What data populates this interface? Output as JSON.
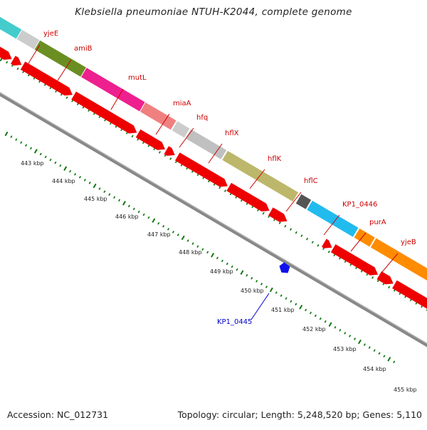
{
  "title": "Klebsiella pneumoniae NTUH-K2044, complete genome",
  "accession": "Accession: NC_012731",
  "topology": "Topology: circular; Length: 5,248,520 bp; Genes: 5,110",
  "colors": {
    "gene_label": "#cc0000",
    "highlight_label": "#0000cc",
    "cds_arrow": "#ee0000",
    "tick": "#117711",
    "backbone": "#888888"
  },
  "kbp_labels": [
    "443 kbp",
    "444 kbp",
    "445 kbp",
    "446 kbp",
    "447 kbp",
    "448 kbp",
    "449 kbp",
    "450 kbp",
    "451 kbp",
    "452 kbp",
    "453 kbp",
    "454 kbp",
    "455 kbp"
  ],
  "genes": [
    {
      "name": "yjeE",
      "color": "#44cccc"
    },
    {
      "name": "amiB",
      "color": "#6b8e23"
    },
    {
      "name": "mutL",
      "color": "#ee1f8e"
    },
    {
      "name": "miaA",
      "color": "#f08080"
    },
    {
      "name": "hfq",
      "color": "#cccccc"
    },
    {
      "name": "hflX",
      "color": "#c0c0c0"
    },
    {
      "name": "hflK",
      "color": "#bdb76b"
    },
    {
      "name": "hflC",
      "color": "#bdb76b"
    },
    {
      "name": "KP1_0446",
      "color": "#555555"
    },
    {
      "name": "purA",
      "color": "#22bbee"
    },
    {
      "name": "yjeB",
      "color": "#ff8c00"
    }
  ],
  "highlight": {
    "name": "KP1_0445",
    "color": "#1111ee"
  }
}
